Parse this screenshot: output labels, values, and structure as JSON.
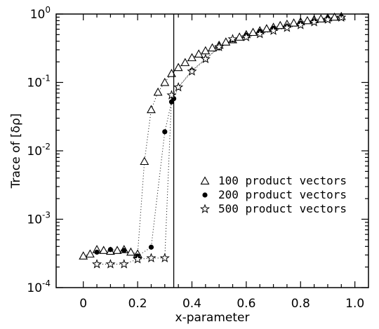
{
  "chart_data": {
    "type": "scatter",
    "xlabel": "x-parameter",
    "ylabel": "Trace of [δρ]",
    "xlim": [
      -0.1,
      1.05
    ],
    "ylim": [
      0.0001,
      1
    ],
    "yscale": "log",
    "xticks": [
      0,
      0.2,
      0.4,
      0.6,
      0.8,
      1.0
    ],
    "xtick_labels": [
      "0",
      "0.2",
      "0.4",
      "0.6",
      "0.8",
      "1.0"
    ],
    "yticks": [
      {
        "base": "10",
        "exp": "0"
      },
      {
        "base": "10",
        "exp": "-1"
      },
      {
        "base": "10",
        "exp": "-2"
      },
      {
        "base": "10",
        "exp": "-3"
      },
      {
        "base": "10",
        "exp": "-4"
      }
    ],
    "vertical_line_x": 0.333,
    "grid": false,
    "legend_position": "center-right",
    "series": [
      {
        "name": "100 product vectors",
        "marker": "triangle-open",
        "points": [
          [
            0.0,
            0.00029
          ],
          [
            0.025,
            0.00031
          ],
          [
            0.05,
            0.00036
          ],
          [
            0.075,
            0.00035
          ],
          [
            0.1,
            0.00034
          ],
          [
            0.125,
            0.00035
          ],
          [
            0.15,
            0.00036
          ],
          [
            0.175,
            0.00033
          ],
          [
            0.2,
            0.00031
          ],
          [
            0.225,
            0.007
          ],
          [
            0.25,
            0.04
          ],
          [
            0.275,
            0.072
          ],
          [
            0.3,
            0.1
          ],
          [
            0.325,
            0.135
          ],
          [
            0.35,
            0.165
          ],
          [
            0.375,
            0.195
          ],
          [
            0.4,
            0.23
          ],
          [
            0.425,
            0.26
          ],
          [
            0.45,
            0.29
          ],
          [
            0.475,
            0.32
          ],
          [
            0.5,
            0.35
          ],
          [
            0.525,
            0.39
          ],
          [
            0.55,
            0.42
          ],
          [
            0.575,
            0.46
          ],
          [
            0.6,
            0.5
          ],
          [
            0.625,
            0.54
          ],
          [
            0.65,
            0.57
          ],
          [
            0.675,
            0.61
          ],
          [
            0.7,
            0.64
          ],
          [
            0.725,
            0.68
          ],
          [
            0.75,
            0.71
          ],
          [
            0.775,
            0.74
          ],
          [
            0.8,
            0.77
          ],
          [
            0.825,
            0.8
          ],
          [
            0.85,
            0.83
          ],
          [
            0.875,
            0.85
          ],
          [
            0.9,
            0.88
          ],
          [
            0.925,
            0.9
          ],
          [
            0.95,
            0.92
          ]
        ]
      },
      {
        "name": "200 product vectors",
        "marker": "circle-filled",
        "points": [
          [
            0.05,
            0.00033
          ],
          [
            0.1,
            0.00036
          ],
          [
            0.15,
            0.00035
          ],
          [
            0.2,
            0.00029
          ],
          [
            0.25,
            0.00039
          ],
          [
            0.3,
            0.019
          ],
          [
            0.325,
            0.052
          ],
          [
            0.333,
            0.058
          ],
          [
            0.35,
            0.085
          ],
          [
            0.4,
            0.15
          ],
          [
            0.45,
            0.22
          ],
          [
            0.5,
            0.32
          ],
          [
            0.55,
            0.42
          ],
          [
            0.6,
            0.49
          ],
          [
            0.65,
            0.56
          ],
          [
            0.7,
            0.62
          ],
          [
            0.75,
            0.66
          ],
          [
            0.8,
            0.73
          ],
          [
            0.85,
            0.79
          ],
          [
            0.9,
            0.86
          ],
          [
            0.95,
            0.91
          ]
        ]
      },
      {
        "name": "500 product vectors",
        "marker": "star-open",
        "points": [
          [
            0.05,
            0.00022
          ],
          [
            0.1,
            0.00022
          ],
          [
            0.15,
            0.00022
          ],
          [
            0.2,
            0.00026
          ],
          [
            0.25,
            0.00027
          ],
          [
            0.3,
            0.00027
          ],
          [
            0.325,
            0.065
          ],
          [
            0.35,
            0.085
          ],
          [
            0.4,
            0.145
          ],
          [
            0.45,
            0.22
          ],
          [
            0.5,
            0.33
          ],
          [
            0.55,
            0.43
          ],
          [
            0.6,
            0.46
          ],
          [
            0.65,
            0.51
          ],
          [
            0.7,
            0.57
          ],
          [
            0.75,
            0.63
          ],
          [
            0.8,
            0.69
          ],
          [
            0.85,
            0.76
          ],
          [
            0.9,
            0.83
          ],
          [
            0.95,
            0.89
          ]
        ]
      }
    ]
  }
}
